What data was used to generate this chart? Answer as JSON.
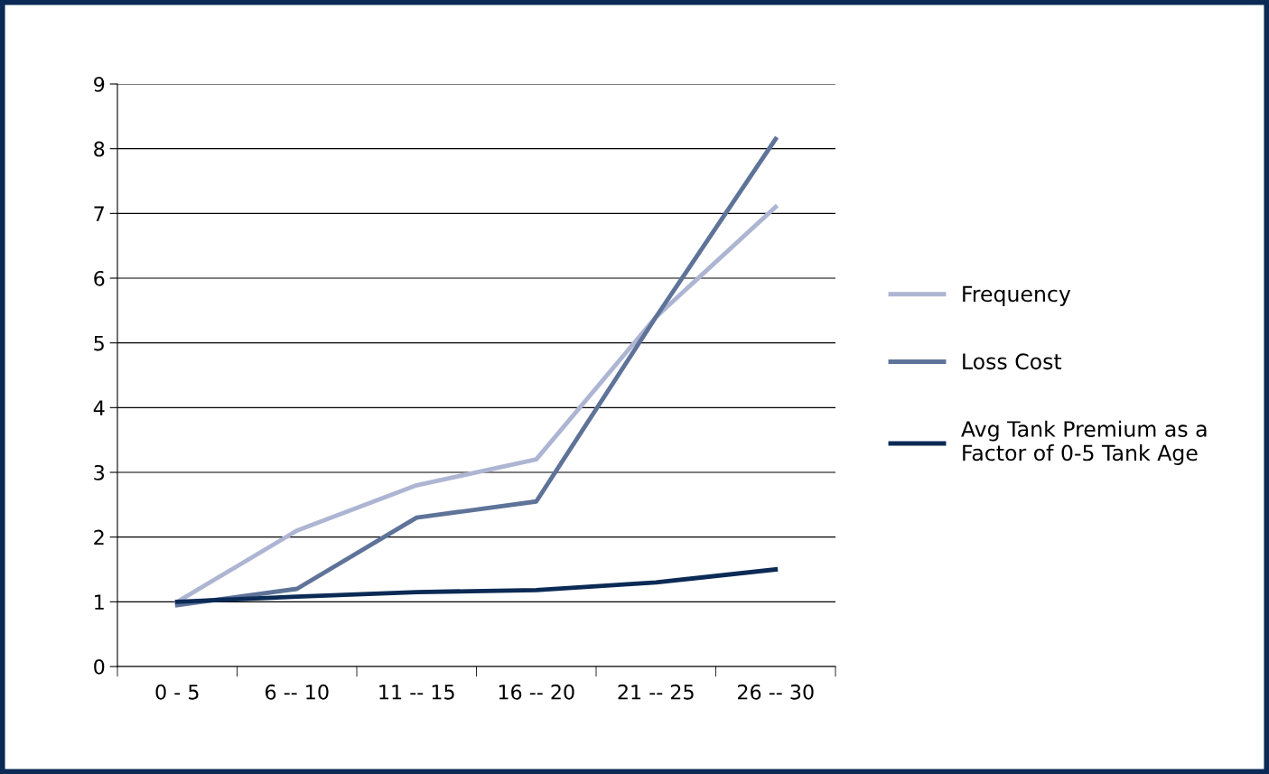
{
  "chart_data": {
    "type": "line",
    "categories": [
      "0 - 5",
      "6 -- 10",
      "11 -- 15",
      "16 -- 20",
      "21 -- 25",
      "26 -- 30"
    ],
    "series": [
      {
        "name": "Frequency",
        "color": "#adb5d3",
        "values": [
          1.0,
          2.1,
          2.8,
          3.2,
          5.4,
          7.1
        ]
      },
      {
        "name": "Loss Cost",
        "color": "#5f7399",
        "values": [
          0.95,
          1.2,
          2.3,
          2.55,
          5.4,
          8.15
        ]
      },
      {
        "name": "Avg Tank Premium as a Factor of 0-5 Tank Age",
        "color": "#0b2a55",
        "values": [
          1.0,
          1.08,
          1.15,
          1.18,
          1.3,
          1.5
        ]
      }
    ],
    "ylim": [
      0,
      9
    ],
    "yticks": [
      0,
      1,
      2,
      3,
      4,
      5,
      6,
      7,
      8,
      9
    ],
    "grid": "y",
    "legend": "right",
    "marker": "none",
    "line_style": "solid"
  }
}
